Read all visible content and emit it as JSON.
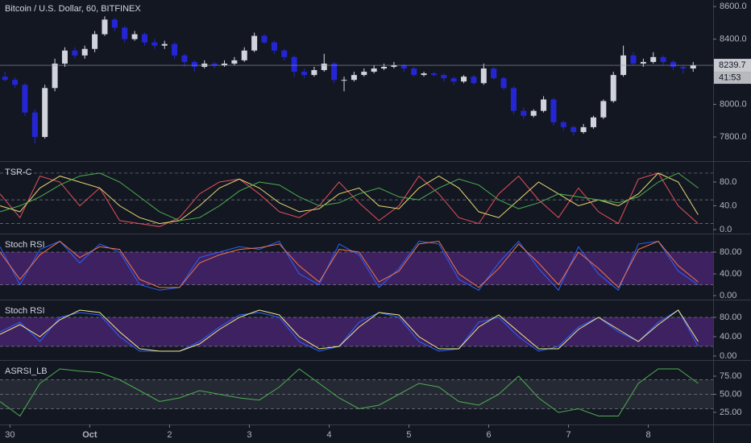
{
  "chart_data": [
    {
      "type": "candlestick",
      "title": "Bitcoin / U.S. Dollar, 60, BITFINEX",
      "x": [
        1.5,
        4.5,
        7.5,
        10.5,
        13.5,
        16.5,
        19.5,
        22.5,
        25.5,
        28.5,
        31.5,
        34.5,
        37.5,
        40.5,
        43.5,
        46.5,
        49.5,
        52.5,
        55.5,
        58.5,
        61.5,
        64.5,
        67.5,
        70.5,
        73.5,
        76.5,
        79.5,
        82.5,
        85.5,
        88.5,
        91.5,
        94.5,
        97.5,
        100.5,
        103.5,
        106.5,
        109.5,
        112.5,
        115.5,
        118.5,
        121.5,
        124.5,
        127.5,
        130.5,
        133.5,
        136.5,
        139.5,
        142.5,
        145.5,
        148.5,
        151.5,
        154.5,
        157.5,
        160.5,
        163.5,
        166.5,
        169.5,
        172.5,
        175.5,
        178.5,
        181.5,
        184.5,
        187.5,
        190.5,
        193.5,
        196.5,
        199.5,
        202.5,
        205.5,
        208.5
      ],
      "open": [
        8170,
        8150,
        8120,
        7950,
        7800,
        8100,
        8250,
        8330,
        8300,
        8340,
        8430,
        8520,
        8470,
        8400,
        8430,
        8380,
        8360,
        8370,
        8300,
        8260,
        8230,
        8250,
        8240,
        8250,
        8270,
        8330,
        8420,
        8380,
        8330,
        8290,
        8200,
        8180,
        8210,
        8250,
        8150,
        8150,
        8180,
        8200,
        8220,
        8230,
        8240,
        8220,
        8180,
        8190,
        8180,
        8160,
        8140,
        8170,
        8130,
        8220,
        8160,
        8100,
        7960,
        7930,
        7960,
        8030,
        7890,
        7860,
        7830,
        7860,
        7920,
        8020,
        8180,
        8300,
        8250,
        8260,
        8290,
        8260,
        8230,
        8220
      ],
      "high": [
        8200,
        8165,
        8130,
        7970,
        8120,
        8280,
        8350,
        8350,
        8360,
        8450,
        8540,
        8530,
        8480,
        8450,
        8440,
        8400,
        8390,
        8380,
        8310,
        8270,
        8270,
        8260,
        8270,
        8290,
        8350,
        8440,
        8430,
        8390,
        8340,
        8300,
        8220,
        8230,
        8310,
        8260,
        8170,
        8200,
        8220,
        8240,
        8250,
        8260,
        8250,
        8230,
        8200,
        8200,
        8190,
        8170,
        8180,
        8180,
        8250,
        8230,
        8170,
        8110,
        7980,
        7970,
        8050,
        8040,
        7900,
        7870,
        7880,
        7930,
        8030,
        8200,
        8360,
        8320,
        8280,
        8320,
        8300,
        8270,
        8240,
        8260
      ],
      "low": [
        8140,
        8100,
        7930,
        7760,
        7790,
        8080,
        8230,
        8280,
        8280,
        8320,
        8420,
        8450,
        8380,
        8390,
        8360,
        8340,
        8340,
        8280,
        8230,
        8200,
        8220,
        8220,
        8230,
        8240,
        8260,
        8320,
        8370,
        8310,
        8270,
        8170,
        8160,
        8170,
        8200,
        8130,
        8080,
        8140,
        8170,
        8190,
        8210,
        8220,
        8200,
        8170,
        8170,
        8170,
        8140,
        8120,
        8130,
        8120,
        8120,
        8150,
        8090,
        7940,
        7910,
        7920,
        7950,
        7870,
        7840,
        7810,
        7820,
        7850,
        7910,
        8010,
        8170,
        8240,
        8230,
        8250,
        8240,
        8210,
        8190,
        8200
      ],
      "close": [
        8150,
        8120,
        7950,
        7800,
        8100,
        8250,
        8330,
        8300,
        8340,
        8430,
        8520,
        8470,
        8400,
        8430,
        8380,
        8360,
        8370,
        8300,
        8260,
        8230,
        8250,
        8240,
        8250,
        8270,
        8330,
        8420,
        8380,
        8330,
        8290,
        8200,
        8180,
        8210,
        8250,
        8150,
        8150,
        8180,
        8200,
        8220,
        8230,
        8240,
        8220,
        8180,
        8190,
        8180,
        8160,
        8140,
        8170,
        8130,
        8220,
        8160,
        8100,
        7960,
        7930,
        7960,
        8030,
        7890,
        7860,
        7830,
        7860,
        7920,
        8020,
        8180,
        8300,
        8250,
        8260,
        8290,
        8260,
        8230,
        8220,
        8239.7
      ],
      "up_color": "#d1d4dc",
      "down_color": "#2426d6",
      "ylim": [
        7652,
        8640
      ],
      "yticks": [
        {
          "value": 8600,
          "label": "8600.0"
        },
        {
          "value": 8400,
          "label": "8400.0"
        },
        {
          "value": 8000,
          "label": "8000.0"
        },
        {
          "value": 7800,
          "label": "7800.0"
        }
      ],
      "last_price": 8239.7,
      "countdown": "41:53"
    },
    {
      "type": "line",
      "title": "TSR-C",
      "x": [
        0,
        6,
        12,
        18,
        24,
        30,
        36,
        42,
        48,
        54,
        60,
        66,
        72,
        78,
        84,
        90,
        96,
        102,
        108,
        114,
        120,
        126,
        132,
        138,
        144,
        150,
        156,
        162,
        168,
        174,
        180,
        186,
        192,
        198,
        204,
        210
      ],
      "series": [
        {
          "color": "#e2505a",
          "values": [
            60,
            20,
            90,
            80,
            40,
            70,
            15,
            10,
            5,
            20,
            60,
            80,
            85,
            60,
            30,
            20,
            40,
            80,
            45,
            15,
            40,
            90,
            60,
            20,
            10,
            60,
            90,
            50,
            20,
            70,
            30,
            10,
            85,
            95,
            40,
            10
          ]
        },
        {
          "color": "#e8d870",
          "values": [
            40,
            30,
            70,
            90,
            80,
            70,
            40,
            20,
            10,
            15,
            40,
            70,
            85,
            70,
            45,
            30,
            35,
            60,
            70,
            40,
            35,
            70,
            90,
            70,
            30,
            20,
            50,
            80,
            60,
            40,
            50,
            40,
            60,
            95,
            80,
            25
          ]
        },
        {
          "color": "#4caf50",
          "values": [
            30,
            40,
            55,
            75,
            90,
            95,
            80,
            55,
            30,
            15,
            20,
            40,
            65,
            80,
            75,
            55,
            40,
            45,
            60,
            70,
            55,
            50,
            70,
            85,
            75,
            50,
            35,
            45,
            60,
            55,
            50,
            45,
            55,
            80,
            95,
            70
          ]
        }
      ],
      "ylim": [
        -6.8,
        113.9
      ],
      "yticks": [
        {
          "value": 80,
          "label": "80.0"
        },
        {
          "value": 40,
          "label": "40.0"
        },
        {
          "value": 0,
          "label": "0.0"
        }
      ],
      "levels": [
        95,
        50,
        10
      ]
    },
    {
      "type": "line",
      "title": "Stoch RSI",
      "x": [
        0,
        6,
        12,
        18,
        24,
        30,
        36,
        42,
        48,
        54,
        60,
        66,
        72,
        78,
        84,
        90,
        96,
        102,
        108,
        114,
        120,
        126,
        132,
        138,
        144,
        150,
        156,
        162,
        168,
        174,
        180,
        186,
        192,
        198,
        204,
        210
      ],
      "series": [
        {
          "color": "#2962ff",
          "values": [
            90,
            20,
            85,
            100,
            60,
            95,
            80,
            20,
            10,
            15,
            70,
            80,
            90,
            85,
            100,
            40,
            20,
            95,
            75,
            15,
            50,
            100,
            95,
            30,
            10,
            60,
            100,
            50,
            10,
            90,
            40,
            10,
            95,
            100,
            45,
            20
          ]
        },
        {
          "color": "#f0764a",
          "values": [
            80,
            30,
            75,
            100,
            70,
            90,
            85,
            30,
            15,
            15,
            60,
            75,
            85,
            88,
            95,
            55,
            25,
            85,
            80,
            25,
            45,
            95,
            100,
            40,
            15,
            50,
            95,
            60,
            20,
            80,
            50,
            15,
            85,
            100,
            55,
            25
          ]
        }
      ],
      "ylim": [
        -7.4,
        112.6
      ],
      "yticks": [
        {
          "value": 80,
          "label": "80.00"
        },
        {
          "value": 40,
          "label": "40.00"
        },
        {
          "value": 0,
          "label": "0.00"
        }
      ],
      "band": [
        20,
        80
      ],
      "band_color": "#4a2470"
    },
    {
      "type": "line",
      "title": "Stoch RSI",
      "x": [
        0,
        6,
        12,
        18,
        24,
        30,
        36,
        42,
        48,
        54,
        60,
        66,
        72,
        78,
        84,
        90,
        96,
        102,
        108,
        114,
        120,
        126,
        132,
        138,
        144,
        150,
        156,
        162,
        168,
        174,
        180,
        186,
        192,
        198,
        204,
        210
      ],
      "series": [
        {
          "color": "#2962ff",
          "values": [
            50,
            70,
            30,
            80,
            90,
            85,
            40,
            10,
            10,
            10,
            30,
            60,
            85,
            90,
            80,
            30,
            10,
            20,
            70,
            90,
            80,
            30,
            10,
            15,
            70,
            80,
            40,
            10,
            20,
            60,
            80,
            50,
            30,
            70,
            95,
            20
          ]
        },
        {
          "color": "#f5e88a",
          "values": [
            45,
            65,
            40,
            75,
            95,
            90,
            50,
            15,
            10,
            10,
            25,
            55,
            80,
            95,
            85,
            40,
            15,
            20,
            60,
            90,
            85,
            40,
            15,
            15,
            60,
            85,
            50,
            15,
            15,
            55,
            80,
            55,
            30,
            65,
            95,
            30
          ]
        }
      ],
      "ylim": [
        -8.3,
        115
      ],
      "yticks": [
        {
          "value": 80,
          "label": "80.00"
        },
        {
          "value": 40,
          "label": "40.00"
        },
        {
          "value": 0,
          "label": "0.00"
        }
      ],
      "band": [
        20,
        80
      ],
      "band_color": "#4a2470"
    },
    {
      "type": "line",
      "title": "ASRSI_LB",
      "x": [
        0,
        6,
        12,
        18,
        24,
        30,
        36,
        42,
        48,
        54,
        60,
        66,
        72,
        78,
        84,
        90,
        96,
        102,
        108,
        114,
        120,
        126,
        132,
        138,
        144,
        150,
        156,
        162,
        168,
        174,
        180,
        186,
        192,
        198,
        204,
        210
      ],
      "series": [
        {
          "color": "#4caf50",
          "values": [
            40,
            20,
            65,
            85,
            82,
            80,
            70,
            55,
            40,
            45,
            55,
            50,
            45,
            42,
            60,
            85,
            65,
            45,
            30,
            35,
            50,
            65,
            60,
            40,
            35,
            50,
            75,
            45,
            25,
            30,
            20,
            20,
            65,
            85,
            85,
            65
          ]
        }
      ],
      "ylim": [
        8.3,
        96.1
      ],
      "yticks": [
        {
          "value": 75,
          "label": "75.00"
        },
        {
          "value": 50,
          "label": "50.00"
        },
        {
          "value": 25,
          "label": "25.00"
        }
      ],
      "band": [
        30,
        70
      ],
      "band_color": "#2a2e39",
      "levels": [
        70,
        50,
        30
      ],
      "xlim": [
        0,
        214.5
      ],
      "xticks": [
        {
          "value": 3,
          "label": "30"
        },
        {
          "value": 27,
          "label": "Oct"
        },
        {
          "value": 51,
          "label": "2"
        },
        {
          "value": 75,
          "label": "3"
        },
        {
          "value": 99,
          "label": "4"
        },
        {
          "value": 123,
          "label": "5"
        },
        {
          "value": 147,
          "label": "6"
        },
        {
          "value": 171,
          "label": "7"
        },
        {
          "value": 195,
          "label": "8"
        }
      ]
    }
  ]
}
